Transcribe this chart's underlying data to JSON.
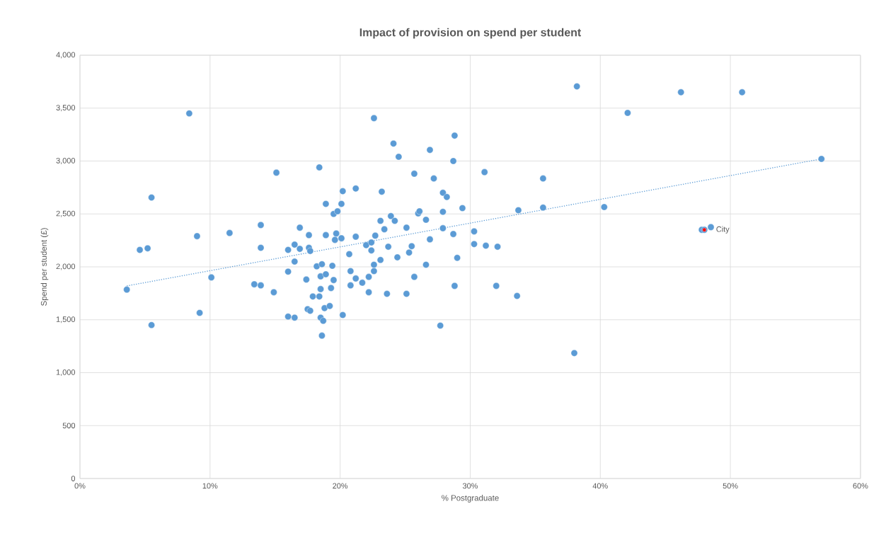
{
  "chart_data": {
    "type": "scatter",
    "title": "Impact of provision on spend per student",
    "xlabel": "% Postgraduate",
    "ylabel": "Spend per student (£)",
    "xlim": [
      0,
      60
    ],
    "xticks": [
      {
        "value": 0,
        "label": "0%"
      },
      {
        "value": 10,
        "label": "10%"
      },
      {
        "value": 20,
        "label": "20%"
      },
      {
        "value": 30,
        "label": "30%"
      },
      {
        "value": 40,
        "label": "40%"
      },
      {
        "value": 50,
        "label": "50%"
      },
      {
        "value": 60,
        "label": "60%"
      }
    ],
    "ylim": [
      0,
      4000
    ],
    "yticks": [
      0,
      500,
      {
        "value": 1000,
        "label": "1,000"
      },
      {
        "value": 1500,
        "label": "1,500"
      },
      {
        "value": 2000,
        "label": "2,000"
      },
      {
        "value": 2500,
        "label": "2,500"
      },
      {
        "value": 3000,
        "label": "3,000"
      },
      {
        "value": 3500,
        "label": "3,500"
      },
      {
        "value": 4000,
        "label": "4,000"
      }
    ],
    "grid": true,
    "marker": "circle",
    "series": [
      {
        "color": "#5b9bd5",
        "x": [
          8.4,
          15.1,
          5.5,
          13.9,
          11.5,
          9.0,
          4.6,
          5.2,
          13.9,
          10.1,
          13.4,
          13.9,
          14.9,
          3.6,
          9.2,
          5.5,
          16.0,
          16.0,
          16.0,
          18.4,
          16.5,
          16.9,
          16.9,
          16.5,
          17.4,
          16.5,
          17.5,
          17.7,
          17.6,
          17.6,
          17.7,
          18.2,
          18.6,
          19.4,
          18.5,
          18.9,
          19.5,
          18.5,
          19.3,
          17.9,
          18.4,
          18.8,
          19.2,
          18.5,
          18.7,
          18.6,
          20.2,
          18.9,
          18.9,
          19.5,
          19.8,
          20.1,
          20.2,
          19.7,
          19.6,
          20.1,
          21.2,
          21.2,
          20.7,
          20.8,
          21.2,
          21.7,
          20.8,
          22.2,
          22.2,
          22.6,
          22.6,
          23.1,
          22.0,
          22.4,
          22.4,
          22.7,
          23.4,
          23.1,
          23.7,
          23.9,
          24.2,
          23.2,
          24.1,
          24.5,
          23.6,
          24.4,
          25.1,
          25.1,
          25.3,
          25.5,
          25.7,
          25.7,
          26.0,
          26.1,
          26.6,
          26.6,
          26.9,
          26.9,
          27.2,
          27.9,
          28.2,
          27.9,
          27.9,
          28.7,
          28.7,
          28.8,
          29.0,
          28.8,
          27.7,
          29.4,
          30.3,
          30.3,
          22.6,
          38.2,
          46.2,
          50.9,
          42.1,
          57.0,
          31.1,
          35.6,
          33.7,
          35.6,
          40.3,
          31.2,
          32.1,
          32.0,
          33.6,
          38.0,
          47.8,
          48.0,
          48.5
        ],
        "values": [
          3450,
          2890,
          2655,
          2395,
          2320,
          2290,
          2160,
          2175,
          2180,
          1900,
          1835,
          1825,
          1760,
          1785,
          1565,
          1450,
          2160,
          1955,
          1530,
          2940,
          2210,
          2170,
          2370,
          2050,
          1880,
          1520,
          1600,
          1585,
          2300,
          2180,
          2150,
          2005,
          2025,
          2010,
          1910,
          1930,
          1875,
          1790,
          1800,
          1720,
          1720,
          1610,
          1630,
          1520,
          1490,
          1350,
          1545,
          2595,
          2300,
          2500,
          2525,
          2595,
          2715,
          2315,
          2255,
          2270,
          2740,
          2285,
          2120,
          1960,
          1890,
          1850,
          1825,
          1760,
          1905,
          1960,
          2020,
          2065,
          2205,
          2155,
          2230,
          2295,
          2355,
          2435,
          2190,
          2480,
          2435,
          2710,
          3165,
          3040,
          1745,
          2090,
          1745,
          2370,
          2135,
          2195,
          2880,
          1905,
          2505,
          2525,
          2445,
          2020,
          2260,
          3105,
          2835,
          2700,
          2660,
          2520,
          2365,
          2310,
          3000,
          3240,
          2085,
          1820,
          1445,
          2555,
          2335,
          2215,
          3405,
          3705,
          3650,
          3650,
          3455,
          3020,
          2895,
          2835,
          2535,
          2560,
          2565,
          2200,
          2190,
          1820,
          1725,
          1185,
          2350,
          2350,
          2375
        ]
      },
      {
        "color": "#ff0000",
        "x": [
          48.0
        ],
        "values": [
          2350
        ]
      },
      {
        "type": "line",
        "color": "#5b9bd5",
        "line_style": "dotted",
        "marker": "none",
        "x": [
          3.6,
          57.0
        ],
        "values": [
          1820,
          3020
        ]
      }
    ],
    "annotations": [
      {
        "text": "City",
        "x": 48.0,
        "y": 2350
      }
    ]
  }
}
